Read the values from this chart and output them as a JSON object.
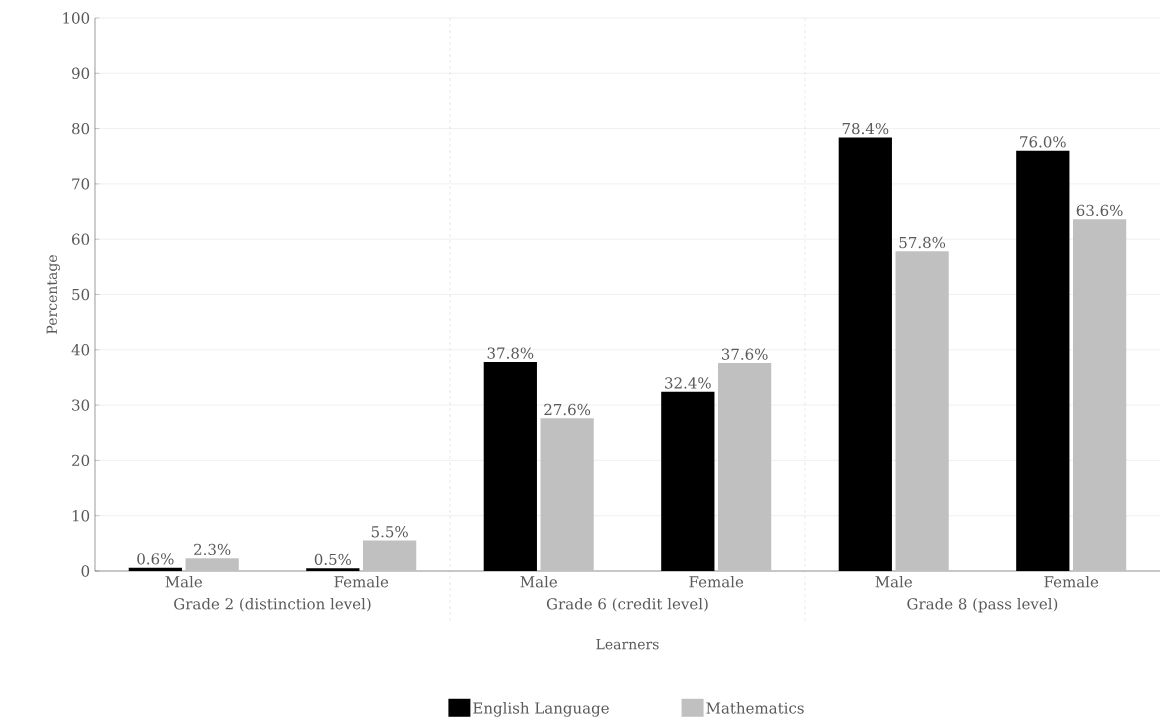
{
  "chart_data": {
    "type": "bar",
    "xlabel": "Learners",
    "ylabel": "Percentage",
    "categories": [
      "Male",
      "Female",
      "Male",
      "Female",
      "Male",
      "Female"
    ],
    "annotations": [
      "Grade 2 (distinction level)",
      "Grade 6 (credit level)",
      "Grade 8 (pass level)"
    ],
    "series": [
      {
        "name": "English Language",
        "color": "#000000",
        "values": [
          0.6,
          0.5,
          37.8,
          32.4,
          78.4,
          76.0
        ],
        "value_labels": [
          "0.6%",
          "0.5%",
          "37.8%",
          "32.4%",
          "78.4%",
          "76.0%"
        ]
      },
      {
        "name": "Mathematics",
        "color": "#c0c0c0",
        "values": [
          2.3,
          5.5,
          27.6,
          37.6,
          57.8,
          63.6
        ],
        "value_labels": [
          "2.3%",
          "5.5%",
          "27.6%",
          "37.6%",
          "57.8%",
          "63.6%"
        ]
      }
    ],
    "ylim": [
      0,
      100
    ],
    "yticks": [
      0,
      10,
      20,
      30,
      40,
      50,
      60,
      70,
      80,
      90,
      100
    ],
    "grid": "y",
    "legend": "bottom"
  }
}
